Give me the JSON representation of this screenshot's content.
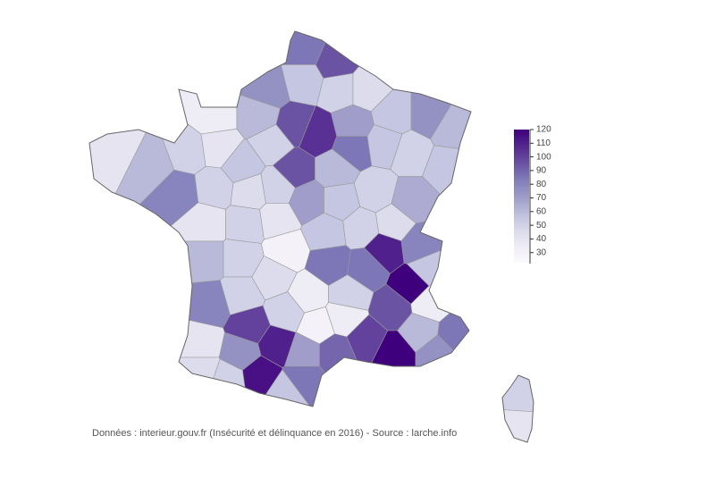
{
  "chart_data": {
    "type": "choropleth",
    "values": [
      85,
      95,
      75,
      55,
      50,
      45,
      35,
      60,
      95,
      105,
      70,
      55,
      75,
      60,
      50,
      95,
      60,
      85,
      55,
      50,
      55,
      40,
      60,
      50,
      40,
      55,
      80,
      50,
      45,
      50,
      70,
      55,
      50,
      65,
      40,
      50,
      40,
      55,
      50,
      45,
      110,
      80,
      60,
      50,
      30,
      85,
      85,
      120,
      55,
      80,
      50,
      45,
      35,
      50,
      95,
      35,
      100,
      50,
      30,
      35,
      60,
      85,
      40,
      75,
      110,
      70,
      90,
      100,
      120,
      75,
      45,
      115,
      85,
      55,
      50,
      50,
      40
    ],
    "colors": [
      "#fcfbfd",
      "#efedf5",
      "#dadaeb",
      "#bcbddc",
      "#9e9ac8",
      "#807dba",
      "#6a51a3",
      "#54278f",
      "#3f007d"
    ],
    "colorlim": [
      22,
      120
    ],
    "colorticks": [
      30,
      40,
      50,
      60,
      70,
      80,
      90,
      100,
      110,
      120
    ],
    "note": "Données : interieur.gouv.fr (Insécurité et délinquance en 2016) - Source : larche.info"
  }
}
